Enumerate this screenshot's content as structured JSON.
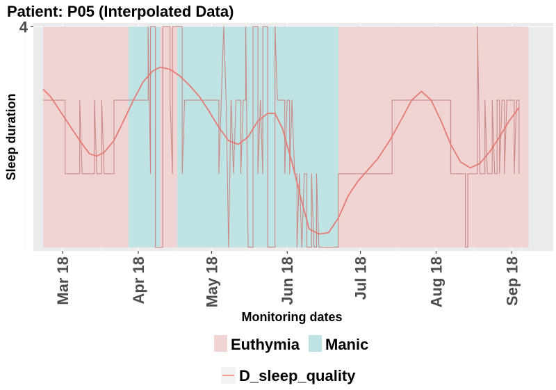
{
  "chart_data": {
    "type": "line",
    "title": "Patient: P05 (Interpolated Data)",
    "xlabel": "Monitoring dates",
    "ylabel": "Sleep duration",
    "y_tick_labels": [
      {
        "value": 4,
        "label": "4"
      }
    ],
    "ylim": [
      0.95,
      4.05
    ],
    "xlim": [
      "2018-02-17",
      "2018-09-18"
    ],
    "x_ticks": [
      {
        "date": "2018-03-01",
        "label": "Mar 18"
      },
      {
        "date": "2018-04-01",
        "label": "Apr 18"
      },
      {
        "date": "2018-05-01",
        "label": "May 18"
      },
      {
        "date": "2018-06-01",
        "label": "Jun 18"
      },
      {
        "date": "2018-07-01",
        "label": "Jul 18"
      },
      {
        "date": "2018-08-01",
        "label": "Aug 18"
      },
      {
        "date": "2018-09-01",
        "label": "Sep 18"
      }
    ],
    "grid": true,
    "background": "#ebebeb",
    "state_bands": [
      {
        "state": "Euthymia",
        "start": "2018-02-21",
        "end": "2018-03-28"
      },
      {
        "state": "Manic",
        "start": "2018-03-28",
        "end": "2018-04-10"
      },
      {
        "state": "Euthymia",
        "start": "2018-04-10",
        "end": "2018-04-17"
      },
      {
        "state": "Manic",
        "start": "2018-04-17",
        "end": "2018-06-22"
      },
      {
        "state": "Euthymia",
        "start": "2018-06-22",
        "end": "2018-09-08"
      }
    ],
    "state_colors": {
      "Euthymia": "#f0d4d4",
      "Manic": "#bfe3e4"
    },
    "series": [
      {
        "name": "D_sleep_quality",
        "color": "#f07f75",
        "values": [
          [
            "2018-02-21",
            3.0
          ],
          [
            "2018-03-02",
            3.0
          ],
          [
            "2018-03-02",
            2.0
          ],
          [
            "2018-03-08",
            2.0
          ],
          [
            "2018-03-08",
            3.0
          ],
          [
            "2018-03-09",
            2.0
          ],
          [
            "2018-03-14",
            2.0
          ],
          [
            "2018-03-14",
            3.0
          ],
          [
            "2018-03-15",
            2.0
          ],
          [
            "2018-03-17",
            2.0
          ],
          [
            "2018-03-17",
            3.0
          ],
          [
            "2018-03-18",
            2.0
          ],
          [
            "2018-03-22",
            2.0
          ],
          [
            "2018-03-22",
            3.0
          ],
          [
            "2018-04-05",
            3.0
          ],
          [
            "2018-04-05",
            4.0
          ],
          [
            "2018-04-06",
            2.0
          ],
          [
            "2018-04-06",
            4.0
          ],
          [
            "2018-04-08",
            4.0
          ],
          [
            "2018-04-08",
            1.0
          ],
          [
            "2018-04-11",
            1.0
          ],
          [
            "2018-04-11",
            4.0
          ],
          [
            "2018-04-14",
            4.0
          ],
          [
            "2018-04-14",
            3.0
          ],
          [
            "2018-04-15",
            2.0
          ],
          [
            "2018-04-15",
            4.0
          ],
          [
            "2018-04-19",
            4.0
          ],
          [
            "2018-04-19",
            2.0
          ],
          [
            "2018-04-20",
            3.0
          ],
          [
            "2018-05-04",
            3.0
          ],
          [
            "2018-05-04",
            2.0
          ],
          [
            "2018-05-05",
            3.0
          ],
          [
            "2018-05-06",
            4.0
          ],
          [
            "2018-05-07",
            3.0
          ],
          [
            "2018-05-08",
            1.0
          ],
          [
            "2018-05-09",
            3.0
          ],
          [
            "2018-05-10",
            2.0
          ],
          [
            "2018-05-11",
            3.0
          ],
          [
            "2018-05-13",
            3.0
          ],
          [
            "2018-05-13",
            2.0
          ],
          [
            "2018-05-14",
            3.0
          ],
          [
            "2018-05-15",
            3.0
          ],
          [
            "2018-05-15",
            4.0
          ],
          [
            "2018-05-16",
            1.0
          ],
          [
            "2018-05-18",
            1.0
          ],
          [
            "2018-05-18",
            4.0
          ],
          [
            "2018-05-20",
            4.0
          ],
          [
            "2018-05-20",
            2.0
          ],
          [
            "2018-05-21",
            3.0
          ],
          [
            "2018-05-22",
            2.0
          ],
          [
            "2018-05-22",
            4.0
          ],
          [
            "2018-05-24",
            4.0
          ],
          [
            "2018-05-24",
            1.0
          ],
          [
            "2018-05-27",
            1.0
          ],
          [
            "2018-05-27",
            4.0
          ],
          [
            "2018-05-28",
            3.0
          ],
          [
            "2018-05-31",
            3.0
          ],
          [
            "2018-05-31",
            2.0
          ],
          [
            "2018-06-01",
            3.0
          ],
          [
            "2018-06-02",
            3.0
          ],
          [
            "2018-06-02",
            2.0
          ],
          [
            "2018-06-03",
            3.0
          ],
          [
            "2018-06-04",
            2.0
          ],
          [
            "2018-06-05",
            2.0
          ],
          [
            "2018-06-05",
            1.0
          ],
          [
            "2018-06-06",
            2.0
          ],
          [
            "2018-06-07",
            1.0
          ],
          [
            "2018-06-08",
            2.0
          ],
          [
            "2018-06-09",
            2.0
          ],
          [
            "2018-06-09",
            1.0
          ],
          [
            "2018-06-11",
            1.0
          ],
          [
            "2018-06-11",
            2.0
          ],
          [
            "2018-06-12",
            1.0
          ],
          [
            "2018-06-13",
            1.0
          ],
          [
            "2018-06-13",
            2.0
          ],
          [
            "2018-06-14",
            1.0
          ],
          [
            "2018-06-22",
            1.0
          ],
          [
            "2018-06-22",
            2.0
          ],
          [
            "2018-07-14",
            2.0
          ],
          [
            "2018-07-14",
            3.0
          ],
          [
            "2018-08-07",
            3.0
          ],
          [
            "2018-08-07",
            2.0
          ],
          [
            "2018-08-13",
            2.0
          ],
          [
            "2018-08-13",
            1.0
          ],
          [
            "2018-08-14",
            1.0
          ],
          [
            "2018-08-14",
            2.0
          ],
          [
            "2018-08-18",
            2.0
          ],
          [
            "2018-08-18",
            4.0
          ],
          [
            "2018-08-19",
            2.0
          ],
          [
            "2018-08-21",
            2.0
          ],
          [
            "2018-08-21",
            3.0
          ],
          [
            "2018-08-22",
            2.0
          ],
          [
            "2018-08-24",
            2.0
          ],
          [
            "2018-08-24",
            3.0
          ],
          [
            "2018-08-25",
            2.0
          ],
          [
            "2018-08-26",
            2.0
          ],
          [
            "2018-08-26",
            3.0
          ],
          [
            "2018-08-27",
            3.0
          ],
          [
            "2018-08-27",
            2.0
          ],
          [
            "2018-08-28",
            3.0
          ],
          [
            "2018-08-29",
            3.0
          ],
          [
            "2018-08-29",
            2.0
          ],
          [
            "2018-08-30",
            3.0
          ],
          [
            "2018-09-02",
            3.0
          ],
          [
            "2018-09-02",
            2.0
          ],
          [
            "2018-09-03",
            3.0
          ],
          [
            "2018-09-04",
            3.0
          ],
          [
            "2018-09-04",
            2.0
          ]
        ]
      },
      {
        "name": "D_sleep_quality smoothed",
        "color": "#f07f75",
        "values": [
          [
            "2018-02-21",
            3.15
          ],
          [
            "2018-02-24",
            3.05
          ],
          [
            "2018-02-28",
            2.85
          ],
          [
            "2018-03-04",
            2.65
          ],
          [
            "2018-03-08",
            2.45
          ],
          [
            "2018-03-12",
            2.27
          ],
          [
            "2018-03-15",
            2.24
          ],
          [
            "2018-03-18",
            2.29
          ],
          [
            "2018-03-22",
            2.45
          ],
          [
            "2018-03-26",
            2.72
          ],
          [
            "2018-03-30",
            3.0
          ],
          [
            "2018-04-03",
            3.25
          ],
          [
            "2018-04-07",
            3.4
          ],
          [
            "2018-04-10",
            3.45
          ],
          [
            "2018-04-14",
            3.42
          ],
          [
            "2018-04-18",
            3.33
          ],
          [
            "2018-04-22",
            3.2
          ],
          [
            "2018-04-26",
            3.05
          ],
          [
            "2018-04-30",
            2.85
          ],
          [
            "2018-05-04",
            2.63
          ],
          [
            "2018-05-08",
            2.45
          ],
          [
            "2018-05-12",
            2.4
          ],
          [
            "2018-05-16",
            2.5
          ],
          [
            "2018-05-20",
            2.72
          ],
          [
            "2018-05-24",
            2.82
          ],
          [
            "2018-05-27",
            2.82
          ],
          [
            "2018-05-30",
            2.62
          ],
          [
            "2018-06-03",
            2.15
          ],
          [
            "2018-06-07",
            1.62
          ],
          [
            "2018-06-10",
            1.25
          ],
          [
            "2018-06-14",
            1.18
          ],
          [
            "2018-06-18",
            1.2
          ],
          [
            "2018-06-22",
            1.4
          ],
          [
            "2018-06-26",
            1.7
          ],
          [
            "2018-06-30",
            1.9
          ],
          [
            "2018-07-04",
            2.05
          ],
          [
            "2018-07-08",
            2.2
          ],
          [
            "2018-07-13",
            2.45
          ],
          [
            "2018-07-18",
            2.75
          ],
          [
            "2018-07-22",
            3.0
          ],
          [
            "2018-07-26",
            3.12
          ],
          [
            "2018-07-30",
            3.0
          ],
          [
            "2018-08-03",
            2.72
          ],
          [
            "2018-08-07",
            2.4
          ],
          [
            "2018-08-11",
            2.16
          ],
          [
            "2018-08-15",
            2.08
          ],
          [
            "2018-08-19",
            2.14
          ],
          [
            "2018-08-23",
            2.3
          ],
          [
            "2018-08-27",
            2.5
          ],
          [
            "2018-08-31",
            2.72
          ],
          [
            "2018-09-04",
            2.9
          ]
        ]
      }
    ],
    "legend": {
      "position": "bottom",
      "fill_entries": [
        "Euthymia",
        "Manic"
      ],
      "line_entries": [
        "D_sleep_quality"
      ]
    }
  }
}
